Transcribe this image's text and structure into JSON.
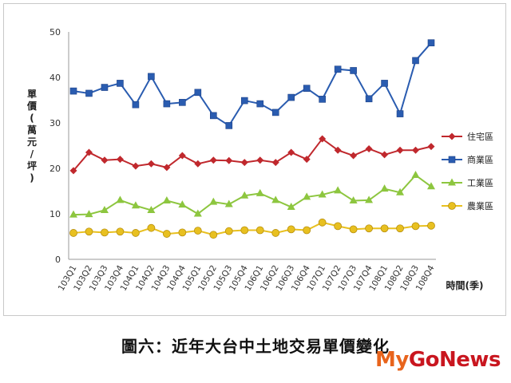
{
  "chart_data": {
    "type": "line",
    "title": "",
    "ylabel": "單價(萬元/坪)",
    "xlabel": "時間(季)",
    "ylim": [
      0,
      50
    ],
    "yticks": [
      0,
      10,
      20,
      30,
      40,
      50
    ],
    "grid": false,
    "legend_position": "right",
    "categories": [
      "103Q1",
      "103Q2",
      "103Q3",
      "103Q4",
      "104Q1",
      "104Q2",
      "104Q3",
      "104Q4",
      "105Q1",
      "105Q2",
      "105Q3",
      "105Q4",
      "106Q1",
      "106Q2",
      "106Q3",
      "106Q4",
      "107Q1",
      "107Q2",
      "107Q3",
      "107Q4",
      "108Q1",
      "108Q2",
      "108Q3",
      "108Q4"
    ],
    "series": [
      {
        "name": "住宅區",
        "color": "#c0282d",
        "marker": "diamond",
        "values": [
          19.5,
          23.5,
          21.8,
          22.0,
          20.5,
          21.0,
          20.2,
          22.8,
          21.0,
          21.8,
          21.7,
          21.3,
          21.8,
          21.3,
          23.5,
          22.0,
          26.5,
          24.0,
          22.8,
          24.3,
          23.0,
          24.0,
          24.0,
          24.8
        ]
      },
      {
        "name": "商業區",
        "color": "#2a5cb0",
        "marker": "square",
        "values": [
          37.0,
          36.5,
          37.8,
          38.7,
          34.0,
          40.2,
          34.2,
          34.5,
          36.7,
          31.6,
          29.4,
          34.9,
          34.2,
          32.3,
          35.6,
          37.6,
          35.2,
          41.8,
          41.5,
          35.3,
          38.7,
          32.0,
          43.7,
          47.6
        ]
      },
      {
        "name": "工業區",
        "color": "#8dc63f",
        "marker": "triangle",
        "values": [
          9.8,
          9.9,
          10.8,
          13.0,
          11.8,
          10.8,
          12.9,
          12.0,
          10.0,
          12.6,
          12.1,
          14.0,
          14.5,
          13.0,
          11.5,
          13.7,
          14.2,
          15.1,
          12.9,
          13.0,
          15.5,
          14.7,
          18.5,
          16.0
        ]
      },
      {
        "name": "農業區",
        "color": "#e8c020",
        "marker": "circle",
        "values": [
          5.8,
          6.1,
          5.9,
          6.1,
          5.8,
          6.9,
          5.6,
          5.9,
          6.3,
          5.4,
          6.2,
          6.4,
          6.4,
          5.8,
          6.6,
          6.4,
          8.1,
          7.3,
          6.6,
          6.8,
          6.8,
          6.8,
          7.3,
          7.4
        ]
      }
    ]
  },
  "caption": "圖六：近年大台中土地交易單價變化",
  "watermark": {
    "my": "My",
    "gonews": "GoNews"
  }
}
